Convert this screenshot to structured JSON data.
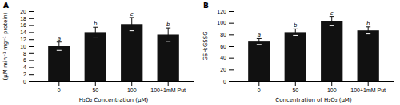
{
  "chart_data": [
    {
      "type": "bar",
      "title": "A",
      "categories": [
        "0",
        "50",
        "100",
        "100+1mM Put"
      ],
      "values": [
        10.0,
        14.0,
        16.3,
        13.3
      ],
      "errors": [
        1.2,
        1.4,
        1.9,
        1.9
      ],
      "annotations": [
        "a",
        "b",
        "c",
        "b"
      ],
      "xlabel": "H₂O₂ Concentration (µM)",
      "ylabel": "(µM min⁻¹ mg⁻¹ protein)",
      "color": "#111111",
      "ylim": [
        0,
        20
      ],
      "yticks": [
        0,
        2,
        4,
        6,
        8,
        10,
        12,
        14,
        16,
        18,
        20
      ]
    },
    {
      "type": "bar",
      "title": "B",
      "categories": [
        "0",
        "50",
        "100",
        "100+1mM Put"
      ],
      "values": [
        68.0,
        84.0,
        103.0,
        87.0
      ],
      "errors": [
        5.0,
        5.5,
        8.0,
        6.0
      ],
      "annotations": [
        "a",
        "b",
        "c",
        "b"
      ],
      "xlabel": "Concentration of H₂O₂ (µM)",
      "ylabel": "GSH:GSSG",
      "color": "#111111",
      "ylim": [
        0,
        120
      ],
      "yticks": [
        0,
        20,
        40,
        60,
        80,
        100,
        120
      ]
    }
  ]
}
